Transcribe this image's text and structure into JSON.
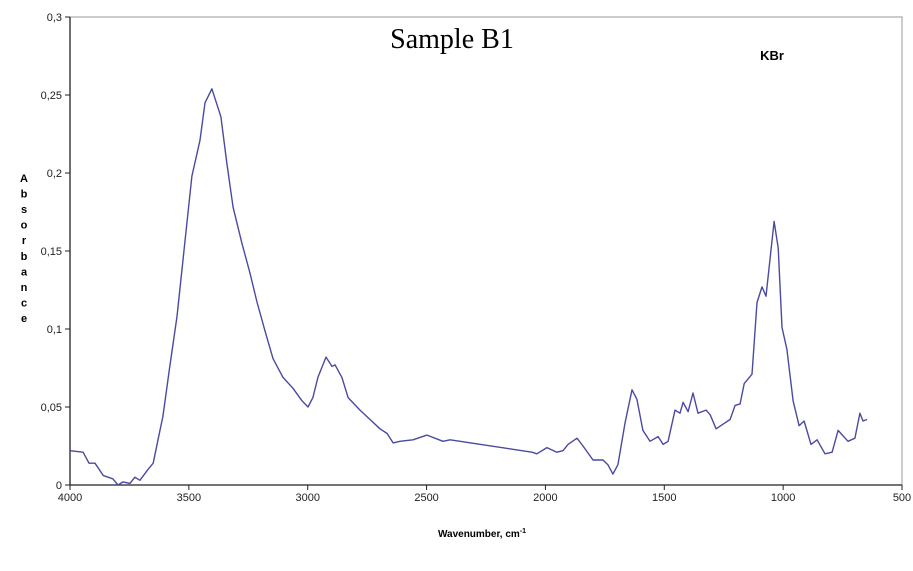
{
  "chart_data": {
    "type": "line",
    "title": "Sample B1",
    "annotation": "KBr",
    "xlabel": "Wavenumber,  cm",
    "xlabel_sup": "-1",
    "ylabel": "Absorbance",
    "xlim": [
      4000,
      500
    ],
    "ylim": [
      0,
      0.3
    ],
    "x_reversed": true,
    "grid": false,
    "x_ticks": [
      4000,
      3500,
      3000,
      2500,
      2000,
      1500,
      1000,
      500
    ],
    "x_tick_labels": [
      "4000",
      "3500",
      "3000",
      "2500",
      "2000",
      "1500",
      "1000",
      "500"
    ],
    "y_ticks": [
      0,
      0.05,
      0.1,
      0.15,
      0.2,
      0.25,
      0.3
    ],
    "y_tick_labels": [
      "0",
      "0,05",
      "0,1",
      "0,15",
      "0,2",
      "0,25",
      "0,3"
    ],
    "line_color": "#4a4aa0",
    "series": [
      {
        "x": [
          4000,
          3945,
          3920,
          3895,
          3860,
          3820,
          3798,
          3777,
          3748,
          3727,
          3706,
          3672,
          3650,
          3630,
          3609,
          3580,
          3550,
          3516,
          3487,
          3453,
          3432,
          3403,
          3365,
          3340,
          3314,
          3277,
          3243,
          3213,
          3180,
          3146,
          3104,
          3062,
          3024,
          2999,
          2978,
          2957,
          2923,
          2898,
          2885,
          2856,
          2830,
          2780,
          2738,
          2696,
          2666,
          2641,
          2612,
          2557,
          2498,
          2431,
          2401,
          2057,
          2036,
          1994,
          1952,
          1926,
          1905,
          1867,
          1842,
          1800,
          1758,
          1737,
          1716,
          1695,
          1665,
          1636,
          1615,
          1590,
          1560,
          1526,
          1505,
          1484,
          1455,
          1434,
          1421,
          1400,
          1379,
          1358,
          1324,
          1307,
          1282,
          1253,
          1223,
          1202,
          1181,
          1164,
          1131,
          1110,
          1089,
          1072,
          1038,
          1021,
          1005,
          984,
          958,
          933,
          912,
          883,
          857,
          824,
          794,
          769,
          727,
          698,
          677,
          664,
          647
        ],
        "y": [
          0.022,
          0.021,
          0.014,
          0.014,
          0.006,
          0.004,
          0.0,
          0.002,
          0.001,
          0.005,
          0.003,
          0.01,
          0.014,
          0.029,
          0.044,
          0.076,
          0.108,
          0.157,
          0.198,
          0.221,
          0.245,
          0.254,
          0.236,
          0.206,
          0.178,
          0.155,
          0.136,
          0.117,
          0.099,
          0.081,
          0.069,
          0.062,
          0.054,
          0.05,
          0.056,
          0.069,
          0.082,
          0.076,
          0.077,
          0.069,
          0.056,
          0.048,
          0.042,
          0.036,
          0.033,
          0.027,
          0.028,
          0.029,
          0.032,
          0.028,
          0.029,
          0.021,
          0.02,
          0.024,
          0.021,
          0.022,
          0.026,
          0.03,
          0.025,
          0.016,
          0.016,
          0.013,
          0.007,
          0.013,
          0.04,
          0.061,
          0.055,
          0.035,
          0.028,
          0.031,
          0.026,
          0.028,
          0.048,
          0.046,
          0.053,
          0.047,
          0.059,
          0.046,
          0.048,
          0.045,
          0.036,
          0.039,
          0.042,
          0.051,
          0.052,
          0.065,
          0.071,
          0.117,
          0.127,
          0.121,
          0.169,
          0.152,
          0.101,
          0.087,
          0.054,
          0.038,
          0.041,
          0.026,
          0.029,
          0.02,
          0.021,
          0.035,
          0.028,
          0.03,
          0.046,
          0.041,
          0.042
        ]
      }
    ]
  }
}
